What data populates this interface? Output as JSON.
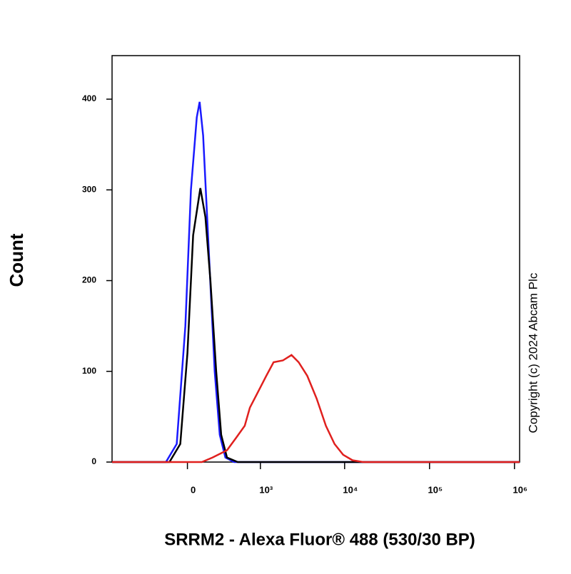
{
  "chart_data": {
    "type": "histogram-overlay",
    "x_label": "SRRM2 - Alexa Fluor® 488 (530/30 BP)",
    "y_label": "Count",
    "copyright": "Copyright (c) 2024 Abcam Plc",
    "xscale": "biexponential",
    "xlim": [
      -1070,
      1150000
    ],
    "xticks": [
      0,
      {
        "value": 1000,
        "label": "10³"
      },
      {
        "value": 10000,
        "label": "10⁴"
      },
      {
        "value": 100000,
        "label": "10⁵"
      },
      {
        "value": 1000000,
        "label": "10⁶"
      }
    ],
    "ylim": [
      0,
      448
    ],
    "yticks": [
      0,
      100,
      200,
      300,
      400
    ],
    "series": [
      {
        "color": "#1a1aff",
        "x": [
          -1070,
          -174,
          -83,
          -16,
          27,
          72,
          95,
          124,
          174,
          228,
          280,
          344,
          460,
          1150000
        ],
        "values": [
          0,
          0,
          20,
          150,
          300,
          380,
          397,
          360,
          230,
          100,
          30,
          5,
          0,
          0
        ]
      },
      {
        "color": "#000000",
        "x": [
          -1070,
          -143,
          -55,
          0,
          44,
          101,
          143,
          187,
          243,
          296,
          364,
          516,
          1150000
        ],
        "values": [
          0,
          0,
          20,
          120,
          250,
          302,
          270,
          200,
          100,
          30,
          5,
          0,
          0
        ]
      },
      {
        "color": "#e0201e",
        "x": [
          -1070,
          113,
          207,
          364,
          493,
          637,
          741,
          907,
          1180,
          1443,
          1864,
          2360,
          2870,
          3627,
          4675,
          6020,
          7610,
          9620,
          12380,
          16580,
          1150000
        ],
        "values": [
          0,
          0,
          5,
          13,
          27,
          40,
          60,
          75,
          95,
          110,
          112,
          118,
          110,
          95,
          70,
          40,
          20,
          8,
          2,
          0,
          0
        ]
      }
    ]
  }
}
